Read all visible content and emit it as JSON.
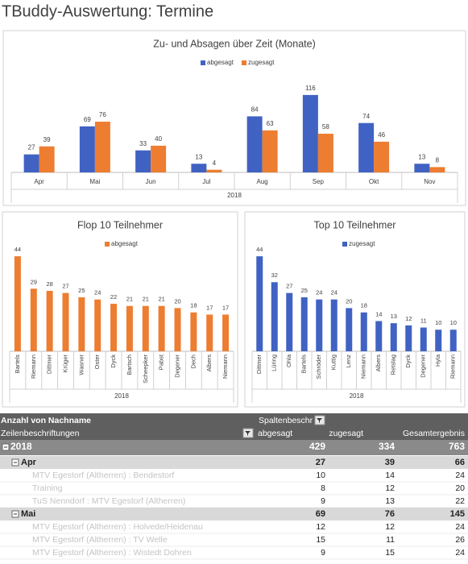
{
  "title": "TBuddy-Auswertung: Termine",
  "chart_data": [
    {
      "type": "bar",
      "title": "Zu- und Absagen über Zeit (Monate)",
      "xlabel": "2018",
      "categories": [
        "Apr",
        "Mai",
        "Jun",
        "Jul",
        "Aug",
        "Sep",
        "Okt",
        "Nov"
      ],
      "series": [
        {
          "name": "abgesagt",
          "color": "#4062c3",
          "values": [
            27,
            69,
            33,
            13,
            84,
            116,
            74,
            13
          ]
        },
        {
          "name": "zugesagt",
          "color": "#ed7d31",
          "values": [
            39,
            76,
            40,
            4,
            63,
            58,
            46,
            8
          ]
        }
      ],
      "ylim": [
        0,
        140
      ]
    },
    {
      "type": "bar",
      "title": "Flop 10 Teilnehmer",
      "xlabel": "2018",
      "categories": [
        "Bartels",
        "Riemann",
        "Dittmer",
        "Krüger",
        "Wasner",
        "Oster",
        "Dyck",
        "Bartsch",
        "Scheepker",
        "Pabst",
        "Degener",
        "Dech",
        "Albers",
        "Niemann"
      ],
      "series": [
        {
          "name": "abgesagt",
          "color": "#ed7d31",
          "values": [
            44,
            29,
            28,
            27,
            25,
            24,
            22,
            21,
            21,
            21,
            20,
            18,
            17,
            17
          ]
        }
      ],
      "ylim": [
        0,
        50
      ]
    },
    {
      "type": "bar",
      "title": "Top 10 Teilnehmer",
      "xlabel": "2018",
      "categories": [
        "Dittmer",
        "Lüring",
        "Ohla",
        "Bartels",
        "Schröder",
        "Kuttig",
        "Lenz",
        "Niemann",
        "Albers",
        "Retslag",
        "Dyck",
        "Degener",
        "Hyla",
        "Riemann"
      ],
      "series": [
        {
          "name": "zugesagt",
          "color": "#4062c3",
          "values": [
            44,
            32,
            27,
            25,
            24,
            24,
            20,
            18,
            14,
            13,
            12,
            11,
            10,
            10
          ]
        }
      ],
      "ylim": [
        0,
        50
      ]
    }
  ],
  "table": {
    "header": [
      "Anzahl von Nachname",
      "Spaltenbeschr"
    ],
    "columns": [
      "Zeilenbeschriftungen",
      "abgesagt",
      "zugesagt",
      "Gesamtergebnis"
    ],
    "year": {
      "label": "2018",
      "values": [
        429,
        334,
        763
      ]
    },
    "groups": [
      {
        "label": "Apr",
        "values": [
          27,
          39,
          66
        ],
        "rows": [
          {
            "label": "MTV Egestorf (Altherren) : Bendestorf",
            "values": [
              10,
              14,
              24
            ]
          },
          {
            "label": "Training",
            "values": [
              8,
              12,
              20
            ]
          },
          {
            "label": "TuS Nenndorf : MTV Egestorf (Altherren)",
            "values": [
              9,
              13,
              22
            ]
          }
        ]
      },
      {
        "label": "Mai",
        "values": [
          69,
          76,
          145
        ],
        "rows": [
          {
            "label": "MTV Egestorf (Altherren) : Holvede/Heidenau",
            "values": [
              12,
              12,
              24
            ]
          },
          {
            "label": "MTV Egestorf (Altherren) : TV Welle",
            "values": [
              15,
              11,
              26
            ]
          },
          {
            "label": "MTV Egestorf (Altherren) : Wistedt Dohren",
            "values": [
              9,
              15,
              24
            ]
          }
        ]
      }
    ]
  }
}
